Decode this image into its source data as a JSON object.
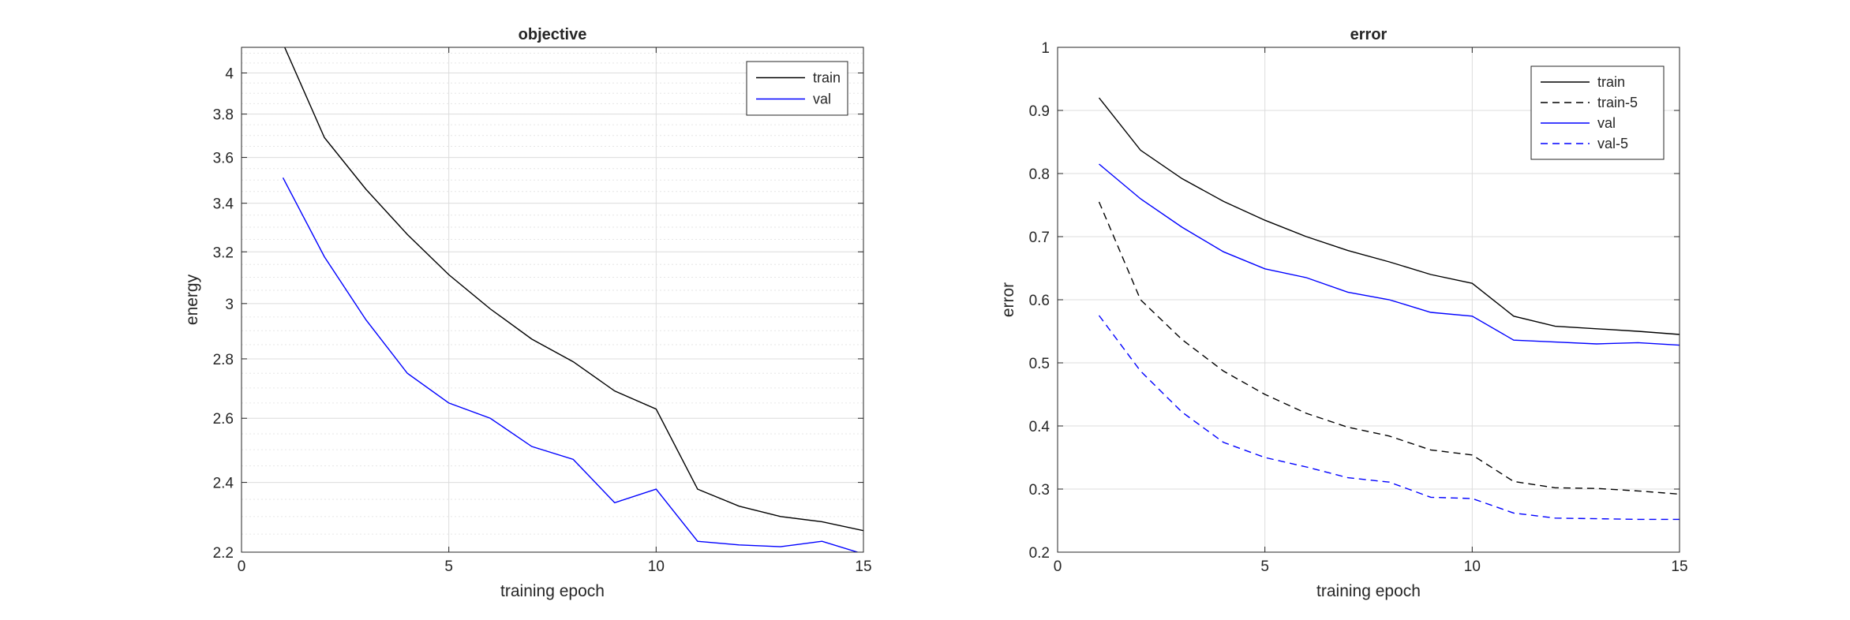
{
  "chart_data": [
    {
      "type": "line",
      "title": "objective",
      "xlabel": "training epoch",
      "ylabel": "energy",
      "xlim": [
        0,
        15
      ],
      "ylim": [
        2.2,
        4.13
      ],
      "yscale": "log",
      "grid": true,
      "minor_grid": true,
      "legend": "top-right",
      "xticks": [
        "0",
        "5",
        "10",
        "15"
      ],
      "yticks": [
        "2.2",
        "2.4",
        "2.6",
        "2.8",
        "3",
        "3.2",
        "3.4",
        "3.6",
        "3.8",
        "4"
      ],
      "x": [
        1,
        2,
        3,
        4,
        5,
        6,
        7,
        8,
        9,
        10,
        11,
        12,
        13,
        14,
        15
      ],
      "series": [
        {
          "name": "train",
          "color": "#000000",
          "dash": "solid",
          "values": [
            4.15,
            3.69,
            3.46,
            3.27,
            3.11,
            2.98,
            2.87,
            2.79,
            2.69,
            2.63,
            2.38,
            2.33,
            2.3,
            2.285,
            2.26
          ]
        },
        {
          "name": "val",
          "color": "#0000ff",
          "dash": "solid",
          "values": [
            3.51,
            3.18,
            2.94,
            2.75,
            2.65,
            2.6,
            2.51,
            2.47,
            2.34,
            2.38,
            2.23,
            2.22,
            2.215,
            2.23,
            2.195
          ]
        }
      ]
    },
    {
      "type": "line",
      "title": "error",
      "xlabel": "training epoch",
      "ylabel": "error",
      "xlim": [
        0,
        15
      ],
      "ylim": [
        0.2,
        1.0
      ],
      "yscale": "linear",
      "grid": true,
      "minor_grid": false,
      "legend": "top-right",
      "xticks": [
        "0",
        "5",
        "10",
        "15"
      ],
      "yticks": [
        "0.2",
        "0.3",
        "0.4",
        "0.5",
        "0.6",
        "0.7",
        "0.8",
        "0.9",
        "1"
      ],
      "x": [
        1,
        2,
        3,
        4,
        5,
        6,
        7,
        8,
        9,
        10,
        11,
        12,
        13,
        14,
        15
      ],
      "series": [
        {
          "name": "train",
          "color": "#000000",
          "dash": "solid",
          "values": [
            0.92,
            0.837,
            0.792,
            0.756,
            0.726,
            0.7,
            0.678,
            0.66,
            0.64,
            0.626,
            0.574,
            0.558,
            0.554,
            0.55,
            0.545
          ]
        },
        {
          "name": "train-5",
          "color": "#000000",
          "dash": "dashed",
          "values": [
            0.755,
            0.6,
            0.537,
            0.487,
            0.45,
            0.42,
            0.398,
            0.384,
            0.362,
            0.354,
            0.312,
            0.302,
            0.301,
            0.297,
            0.292
          ]
        },
        {
          "name": "val",
          "color": "#0000ff",
          "dash": "solid",
          "values": [
            0.815,
            0.76,
            0.715,
            0.676,
            0.649,
            0.635,
            0.612,
            0.6,
            0.58,
            0.574,
            0.536,
            0.533,
            0.53,
            0.532,
            0.528
          ]
        },
        {
          "name": "val-5",
          "color": "#0000ff",
          "dash": "dashed",
          "values": [
            0.575,
            0.487,
            0.422,
            0.374,
            0.35,
            0.335,
            0.318,
            0.311,
            0.287,
            0.285,
            0.262,
            0.254,
            0.253,
            0.252,
            0.252
          ]
        }
      ]
    }
  ]
}
